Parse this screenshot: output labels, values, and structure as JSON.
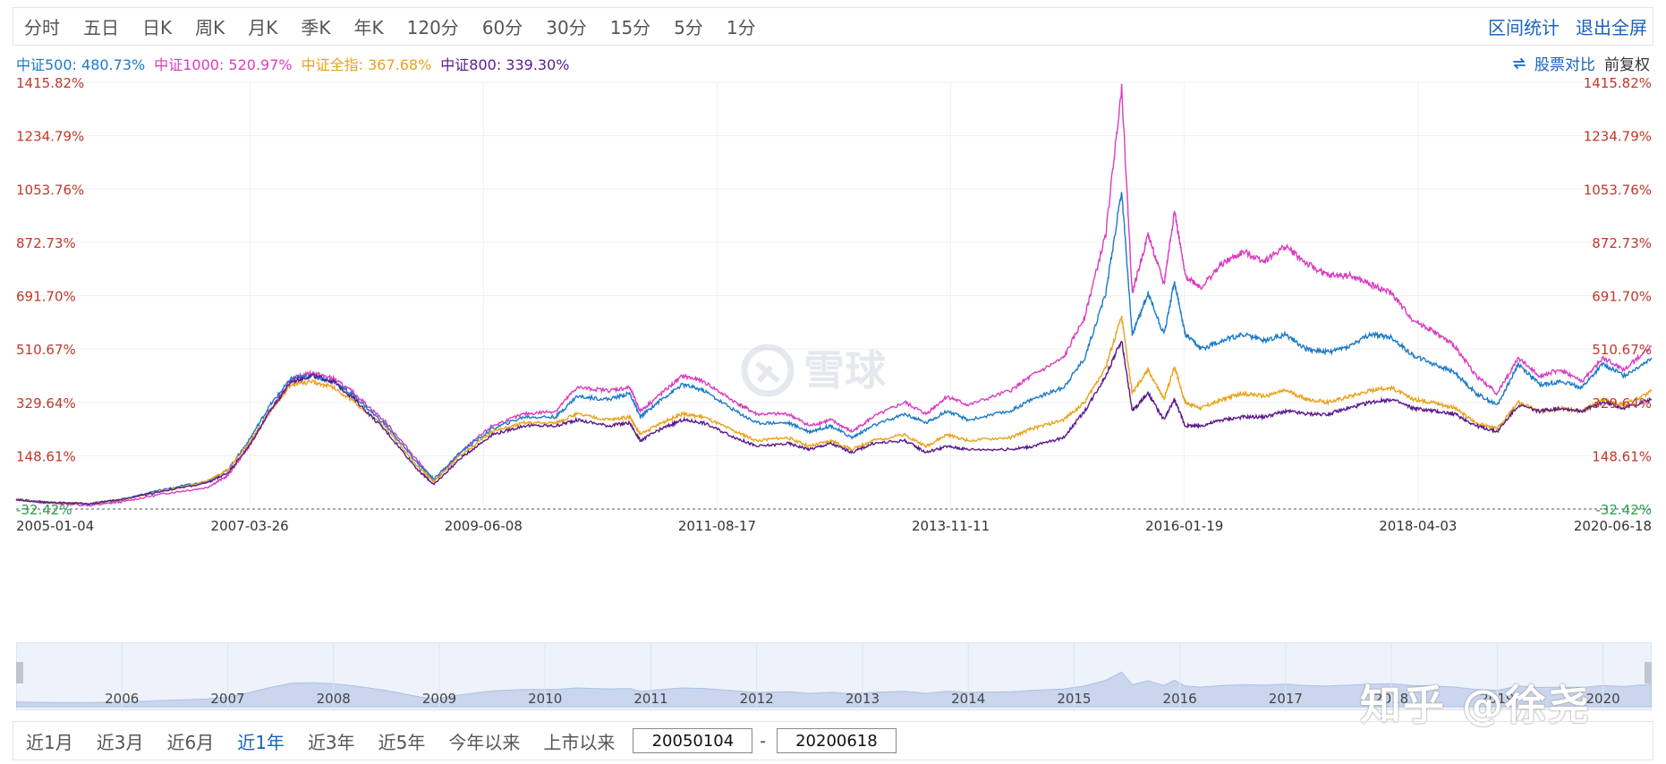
{
  "toolbar": {
    "periods": [
      "分时",
      "五日",
      "日K",
      "周K",
      "月K",
      "季K",
      "年K",
      "120分",
      "60分",
      "30分",
      "15分",
      "5分",
      "1分"
    ],
    "actions": [
      "区间统计",
      "退出全屏"
    ]
  },
  "legend": {
    "items": [
      {
        "label": "中证500: 480.73%",
        "color": "#1a7ac8"
      },
      {
        "label": "中证1000: 520.97%",
        "color": "#d93cc0"
      },
      {
        "label": "中证全指: 367.68%",
        "color": "#e9a21a"
      },
      {
        "label": "中证800: 339.30%",
        "color": "#5a1a8c"
      }
    ],
    "compare_label": "股票对比",
    "adjust_label": "前复权"
  },
  "brand_watermark": "雪球",
  "user_watermark": "知乎 @徐尧",
  "chart_data": {
    "type": "line",
    "y_unit": "%",
    "yticks": [
      "1415.82%",
      "1234.79%",
      "1053.76%",
      "872.73%",
      "691.70%",
      "510.67%",
      "329.64%",
      "148.61%",
      "-32.42%"
    ],
    "ylim": [
      -32.42,
      1415.82
    ],
    "xticks": [
      "2005-01-04",
      "2007-03-26",
      "2009-06-08",
      "2011-08-17",
      "2013-11-11",
      "2016-01-19",
      "2018-04-03",
      "2020-06-18"
    ],
    "xlim": [
      2005.0,
      2020.46
    ],
    "series": [
      {
        "name": "中证1000",
        "color": "#d93cc0",
        "points": [
          [
            2005.0,
            0
          ],
          [
            2005.3,
            -12
          ],
          [
            2005.7,
            -20
          ],
          [
            2006.0,
            -8
          ],
          [
            2006.4,
            20
          ],
          [
            2006.8,
            40
          ],
          [
            2007.0,
            80
          ],
          [
            2007.2,
            180
          ],
          [
            2007.4,
            300
          ],
          [
            2007.6,
            410
          ],
          [
            2007.8,
            430
          ],
          [
            2008.0,
            410
          ],
          [
            2008.2,
            360
          ],
          [
            2008.5,
            260
          ],
          [
            2008.8,
            130
          ],
          [
            2008.95,
            60
          ],
          [
            2009.2,
            160
          ],
          [
            2009.5,
            250
          ],
          [
            2009.8,
            290
          ],
          [
            2010.1,
            300
          ],
          [
            2010.3,
            380
          ],
          [
            2010.6,
            370
          ],
          [
            2010.8,
            380
          ],
          [
            2010.9,
            300
          ],
          [
            2011.1,
            360
          ],
          [
            2011.3,
            420
          ],
          [
            2011.5,
            400
          ],
          [
            2011.8,
            330
          ],
          [
            2012.0,
            290
          ],
          [
            2012.3,
            290
          ],
          [
            2012.5,
            250
          ],
          [
            2012.7,
            270
          ],
          [
            2012.9,
            230
          ],
          [
            2013.1,
            280
          ],
          [
            2013.4,
            330
          ],
          [
            2013.6,
            290
          ],
          [
            2013.8,
            350
          ],
          [
            2014.0,
            320
          ],
          [
            2014.4,
            370
          ],
          [
            2014.6,
            420
          ],
          [
            2014.9,
            480
          ],
          [
            2015.1,
            620
          ],
          [
            2015.3,
            900
          ],
          [
            2015.45,
            1400
          ],
          [
            2015.55,
            700
          ],
          [
            2015.7,
            900
          ],
          [
            2015.85,
            730
          ],
          [
            2015.95,
            980
          ],
          [
            2016.05,
            760
          ],
          [
            2016.2,
            720
          ],
          [
            2016.4,
            800
          ],
          [
            2016.6,
            840
          ],
          [
            2016.8,
            810
          ],
          [
            2017.0,
            860
          ],
          [
            2017.2,
            800
          ],
          [
            2017.4,
            760
          ],
          [
            2017.6,
            760
          ],
          [
            2017.8,
            730
          ],
          [
            2018.0,
            700
          ],
          [
            2018.2,
            610
          ],
          [
            2018.4,
            570
          ],
          [
            2018.6,
            520
          ],
          [
            2018.8,
            420
          ],
          [
            2019.0,
            360
          ],
          [
            2019.2,
            480
          ],
          [
            2019.4,
            420
          ],
          [
            2019.6,
            440
          ],
          [
            2019.8,
            400
          ],
          [
            2020.0,
            480
          ],
          [
            2020.2,
            440
          ],
          [
            2020.46,
            521
          ]
        ]
      },
      {
        "name": "中证500",
        "color": "#1a7ac8",
        "points": [
          [
            2005.0,
            0
          ],
          [
            2005.3,
            -10
          ],
          [
            2005.7,
            -15
          ],
          [
            2006.0,
            0
          ],
          [
            2006.4,
            35
          ],
          [
            2006.8,
            60
          ],
          [
            2007.0,
            100
          ],
          [
            2007.2,
            200
          ],
          [
            2007.4,
            320
          ],
          [
            2007.6,
            410
          ],
          [
            2007.8,
            420
          ],
          [
            2008.0,
            400
          ],
          [
            2008.2,
            350
          ],
          [
            2008.5,
            250
          ],
          [
            2008.8,
            120
          ],
          [
            2008.95,
            70
          ],
          [
            2009.2,
            160
          ],
          [
            2009.5,
            240
          ],
          [
            2009.8,
            280
          ],
          [
            2010.1,
            280
          ],
          [
            2010.3,
            350
          ],
          [
            2010.6,
            340
          ],
          [
            2010.8,
            360
          ],
          [
            2010.9,
            280
          ],
          [
            2011.1,
            340
          ],
          [
            2011.3,
            390
          ],
          [
            2011.5,
            370
          ],
          [
            2011.8,
            300
          ],
          [
            2012.0,
            260
          ],
          [
            2012.3,
            260
          ],
          [
            2012.5,
            230
          ],
          [
            2012.7,
            250
          ],
          [
            2012.9,
            210
          ],
          [
            2013.1,
            250
          ],
          [
            2013.4,
            290
          ],
          [
            2013.6,
            260
          ],
          [
            2013.8,
            300
          ],
          [
            2014.0,
            270
          ],
          [
            2014.4,
            300
          ],
          [
            2014.6,
            340
          ],
          [
            2014.9,
            380
          ],
          [
            2015.1,
            480
          ],
          [
            2015.3,
            700
          ],
          [
            2015.45,
            1050
          ],
          [
            2015.55,
            560
          ],
          [
            2015.7,
            700
          ],
          [
            2015.85,
            560
          ],
          [
            2015.95,
            740
          ],
          [
            2016.05,
            560
          ],
          [
            2016.2,
            510
          ],
          [
            2016.4,
            540
          ],
          [
            2016.6,
            560
          ],
          [
            2016.8,
            540
          ],
          [
            2017.0,
            560
          ],
          [
            2017.2,
            510
          ],
          [
            2017.4,
            500
          ],
          [
            2017.6,
            520
          ],
          [
            2017.8,
            560
          ],
          [
            2018.0,
            550
          ],
          [
            2018.2,
            490
          ],
          [
            2018.4,
            460
          ],
          [
            2018.6,
            430
          ],
          [
            2018.8,
            360
          ],
          [
            2019.0,
            320
          ],
          [
            2019.2,
            460
          ],
          [
            2019.4,
            390
          ],
          [
            2019.6,
            400
          ],
          [
            2019.8,
            380
          ],
          [
            2020.0,
            460
          ],
          [
            2020.2,
            420
          ],
          [
            2020.46,
            481
          ]
        ]
      },
      {
        "name": "中证全指",
        "color": "#e9a21a",
        "points": [
          [
            2005.0,
            0
          ],
          [
            2005.3,
            -10
          ],
          [
            2005.7,
            -14
          ],
          [
            2006.0,
            0
          ],
          [
            2006.4,
            30
          ],
          [
            2006.8,
            60
          ],
          [
            2007.0,
            100
          ],
          [
            2007.2,
            190
          ],
          [
            2007.4,
            300
          ],
          [
            2007.6,
            390
          ],
          [
            2007.8,
            400
          ],
          [
            2008.0,
            380
          ],
          [
            2008.2,
            330
          ],
          [
            2008.5,
            240
          ],
          [
            2008.8,
            110
          ],
          [
            2008.95,
            60
          ],
          [
            2009.2,
            150
          ],
          [
            2009.5,
            230
          ],
          [
            2009.8,
            260
          ],
          [
            2010.1,
            260
          ],
          [
            2010.3,
            290
          ],
          [
            2010.6,
            270
          ],
          [
            2010.8,
            280
          ],
          [
            2010.9,
            220
          ],
          [
            2011.1,
            260
          ],
          [
            2011.3,
            290
          ],
          [
            2011.5,
            280
          ],
          [
            2011.8,
            230
          ],
          [
            2012.0,
            200
          ],
          [
            2012.3,
            210
          ],
          [
            2012.5,
            180
          ],
          [
            2012.7,
            200
          ],
          [
            2012.9,
            170
          ],
          [
            2013.1,
            200
          ],
          [
            2013.4,
            220
          ],
          [
            2013.6,
            180
          ],
          [
            2013.8,
            220
          ],
          [
            2014.0,
            200
          ],
          [
            2014.4,
            210
          ],
          [
            2014.6,
            240
          ],
          [
            2014.9,
            270
          ],
          [
            2015.1,
            330
          ],
          [
            2015.3,
            450
          ],
          [
            2015.45,
            620
          ],
          [
            2015.55,
            360
          ],
          [
            2015.7,
            440
          ],
          [
            2015.85,
            340
          ],
          [
            2015.95,
            450
          ],
          [
            2016.05,
            330
          ],
          [
            2016.2,
            310
          ],
          [
            2016.4,
            340
          ],
          [
            2016.6,
            360
          ],
          [
            2016.8,
            350
          ],
          [
            2017.0,
            370
          ],
          [
            2017.2,
            340
          ],
          [
            2017.4,
            330
          ],
          [
            2017.6,
            350
          ],
          [
            2017.8,
            370
          ],
          [
            2018.0,
            380
          ],
          [
            2018.2,
            340
          ],
          [
            2018.4,
            330
          ],
          [
            2018.6,
            310
          ],
          [
            2018.8,
            260
          ],
          [
            2019.0,
            240
          ],
          [
            2019.2,
            330
          ],
          [
            2019.4,
            300
          ],
          [
            2019.6,
            310
          ],
          [
            2019.8,
            300
          ],
          [
            2020.0,
            340
          ],
          [
            2020.2,
            320
          ],
          [
            2020.46,
            368
          ]
        ]
      },
      {
        "name": "中证800",
        "color": "#5a1a8c",
        "points": [
          [
            2005.0,
            0
          ],
          [
            2005.3,
            -10
          ],
          [
            2005.7,
            -14
          ],
          [
            2006.0,
            0
          ],
          [
            2006.4,
            30
          ],
          [
            2006.8,
            55
          ],
          [
            2007.0,
            90
          ],
          [
            2007.2,
            180
          ],
          [
            2007.4,
            300
          ],
          [
            2007.6,
            400
          ],
          [
            2007.8,
            420
          ],
          [
            2008.0,
            400
          ],
          [
            2008.2,
            340
          ],
          [
            2008.5,
            230
          ],
          [
            2008.8,
            100
          ],
          [
            2008.95,
            50
          ],
          [
            2009.2,
            140
          ],
          [
            2009.5,
            220
          ],
          [
            2009.8,
            250
          ],
          [
            2010.1,
            250
          ],
          [
            2010.3,
            270
          ],
          [
            2010.6,
            250
          ],
          [
            2010.8,
            260
          ],
          [
            2010.9,
            200
          ],
          [
            2011.1,
            240
          ],
          [
            2011.3,
            270
          ],
          [
            2011.5,
            260
          ],
          [
            2011.8,
            210
          ],
          [
            2012.0,
            180
          ],
          [
            2012.3,
            190
          ],
          [
            2012.5,
            170
          ],
          [
            2012.7,
            190
          ],
          [
            2012.9,
            160
          ],
          [
            2013.1,
            190
          ],
          [
            2013.4,
            200
          ],
          [
            2013.6,
            160
          ],
          [
            2013.8,
            180
          ],
          [
            2014.0,
            170
          ],
          [
            2014.4,
            170
          ],
          [
            2014.6,
            180
          ],
          [
            2014.9,
            210
          ],
          [
            2015.1,
            300
          ],
          [
            2015.3,
            420
          ],
          [
            2015.45,
            540
          ],
          [
            2015.55,
            300
          ],
          [
            2015.7,
            360
          ],
          [
            2015.85,
            270
          ],
          [
            2015.95,
            340
          ],
          [
            2016.05,
            250
          ],
          [
            2016.2,
            250
          ],
          [
            2016.4,
            270
          ],
          [
            2016.6,
            280
          ],
          [
            2016.8,
            280
          ],
          [
            2017.0,
            300
          ],
          [
            2017.2,
            290
          ],
          [
            2017.4,
            290
          ],
          [
            2017.6,
            310
          ],
          [
            2017.8,
            330
          ],
          [
            2018.0,
            340
          ],
          [
            2018.2,
            310
          ],
          [
            2018.4,
            300
          ],
          [
            2018.6,
            290
          ],
          [
            2018.8,
            250
          ],
          [
            2019.0,
            230
          ],
          [
            2019.2,
            320
          ],
          [
            2019.4,
            300
          ],
          [
            2019.6,
            310
          ],
          [
            2019.8,
            300
          ],
          [
            2020.0,
            330
          ],
          [
            2020.2,
            310
          ],
          [
            2020.46,
            339
          ]
        ]
      }
    ],
    "navigator_years": [
      "2006",
      "2007",
      "2008",
      "2009",
      "2010",
      "2011",
      "2012",
      "2013",
      "2014",
      "2015",
      "2016",
      "2017",
      "2018",
      "2019",
      "2020"
    ]
  },
  "range_bar": {
    "tabs": [
      "近1月",
      "近3月",
      "近6月",
      "近1年",
      "近3年",
      "近5年",
      "今年以来",
      "上市以来"
    ],
    "active_index": 3,
    "start_date": "20050104",
    "end_date": "20200618"
  },
  "colors": {
    "up": "#c0392b",
    "down": "#2a9d4a",
    "link": "#1a62c1"
  }
}
